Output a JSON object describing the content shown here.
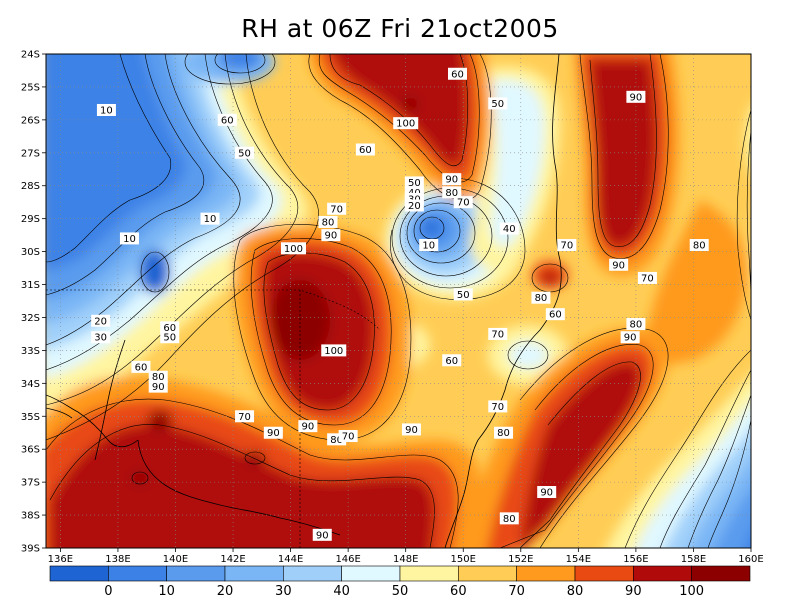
{
  "title": "RH at 06Z Fri 21oct2005",
  "axes": {
    "lat_labels": [
      "24S",
      "25S",
      "26S",
      "27S",
      "28S",
      "29S",
      "30S",
      "31S",
      "32S",
      "33S",
      "34S",
      "35S",
      "36S",
      "37S",
      "38S",
      "39S"
    ],
    "lon_labels": [
      "136E",
      "138E",
      "140E",
      "142E",
      "144E",
      "146E",
      "148E",
      "150E",
      "152E",
      "154E",
      "156E",
      "158E",
      "160E"
    ],
    "lat_range": [
      -39,
      -24
    ],
    "lon_range": [
      135.5,
      160
    ],
    "grid": "dotted"
  },
  "colorbar": {
    "labels": [
      "0",
      "10",
      "20",
      "30",
      "40",
      "50",
      "60",
      "70",
      "80",
      "90",
      "100"
    ],
    "colors": [
      "#1e64d2",
      "#3c82e6",
      "#5a9bee",
      "#7ab6f5",
      "#a0d0fa",
      "#e0f8ff",
      "#fff5a0",
      "#ffcd55",
      "#ff9a1e",
      "#e84a12",
      "#b00a0a",
      "#8c0000"
    ]
  },
  "contour_labels": [
    {
      "text": "60",
      "lon": 149.8,
      "lat": -24.6
    },
    {
      "text": "90",
      "lon": 156.0,
      "lat": -25.3
    },
    {
      "text": "50",
      "lon": 151.2,
      "lat": -25.5
    },
    {
      "text": "10",
      "lon": 137.6,
      "lat": -25.7
    },
    {
      "text": "60",
      "lon": 141.8,
      "lat": -26.0
    },
    {
      "text": "100",
      "lon": 148.0,
      "lat": -26.1
    },
    {
      "text": "50",
      "lon": 142.4,
      "lat": -27.0
    },
    {
      "text": "60",
      "lon": 146.6,
      "lat": -26.9
    },
    {
      "text": "90",
      "lon": 149.6,
      "lat": -27.8
    },
    {
      "text": "50",
      "lon": 148.3,
      "lat": -27.9
    },
    {
      "text": "80",
      "lon": 149.6,
      "lat": -28.2
    },
    {
      "text": "40",
      "lon": 148.3,
      "lat": -28.2
    },
    {
      "text": "30",
      "lon": 148.3,
      "lat": -28.4
    },
    {
      "text": "70",
      "lon": 150.0,
      "lat": -28.5
    },
    {
      "text": "20",
      "lon": 148.3,
      "lat": -28.6
    },
    {
      "text": "70",
      "lon": 145.6,
      "lat": -28.7
    },
    {
      "text": "10",
      "lon": 141.2,
      "lat": -29.0
    },
    {
      "text": "80",
      "lon": 145.3,
      "lat": -29.1
    },
    {
      "text": "40",
      "lon": 151.6,
      "lat": -29.3
    },
    {
      "text": "10",
      "lon": 138.4,
      "lat": -29.6
    },
    {
      "text": "90",
      "lon": 145.4,
      "lat": -29.5
    },
    {
      "text": "10",
      "lon": 148.8,
      "lat": -29.8
    },
    {
      "text": "70",
      "lon": 153.6,
      "lat": -29.8
    },
    {
      "text": "80",
      "lon": 158.2,
      "lat": -29.8
    },
    {
      "text": "100",
      "lon": 144.1,
      "lat": -29.9
    },
    {
      "text": "90",
      "lon": 155.4,
      "lat": -30.4
    },
    {
      "text": "70",
      "lon": 156.4,
      "lat": -30.8
    },
    {
      "text": "50",
      "lon": 150.0,
      "lat": -31.3
    },
    {
      "text": "80",
      "lon": 152.7,
      "lat": -31.4
    },
    {
      "text": "60",
      "lon": 153.2,
      "lat": -31.9
    },
    {
      "text": "20",
      "lon": 137.4,
      "lat": -32.1
    },
    {
      "text": "60",
      "lon": 139.8,
      "lat": -32.3
    },
    {
      "text": "80",
      "lon": 156.0,
      "lat": -32.2
    },
    {
      "text": "30",
      "lon": 137.4,
      "lat": -32.6
    },
    {
      "text": "50",
      "lon": 139.8,
      "lat": -32.6
    },
    {
      "text": "70",
      "lon": 151.2,
      "lat": -32.5
    },
    {
      "text": "90",
      "lon": 155.8,
      "lat": -32.6
    },
    {
      "text": "100",
      "lon": 145.5,
      "lat": -33.0
    },
    {
      "text": "60",
      "lon": 149.6,
      "lat": -33.3
    },
    {
      "text": "60",
      "lon": 138.8,
      "lat": -33.5
    },
    {
      "text": "80",
      "lon": 139.4,
      "lat": -33.8
    },
    {
      "text": "90",
      "lon": 139.4,
      "lat": -34.1
    },
    {
      "text": "70",
      "lon": 151.2,
      "lat": -34.7
    },
    {
      "text": "70",
      "lon": 142.4,
      "lat": -35.0
    },
    {
      "text": "90",
      "lon": 144.6,
      "lat": -35.3
    },
    {
      "text": "90",
      "lon": 148.2,
      "lat": -35.4
    },
    {
      "text": "90",
      "lon": 143.4,
      "lat": -35.5
    },
    {
      "text": "80",
      "lon": 151.4,
      "lat": -35.5
    },
    {
      "text": "80",
      "lon": 145.6,
      "lat": -35.7
    },
    {
      "text": "70",
      "lon": 146.0,
      "lat": -35.6
    },
    {
      "text": "90",
      "lon": 152.9,
      "lat": -37.3
    },
    {
      "text": "80",
      "lon": 151.6,
      "lat": -38.1
    },
    {
      "text": "90",
      "lon": 145.1,
      "lat": -38.6
    }
  ]
}
